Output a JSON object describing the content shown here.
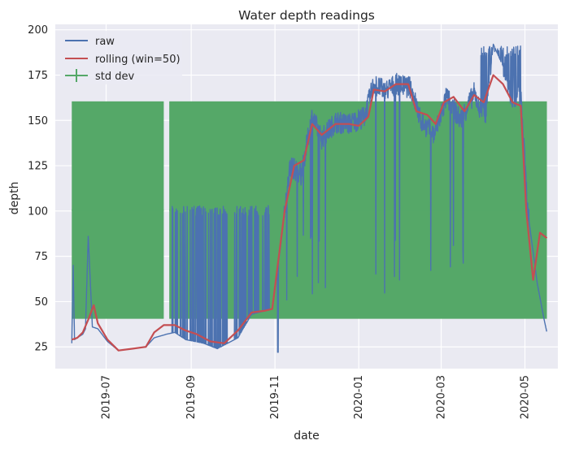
{
  "chart_data": {
    "type": "line",
    "title": "Water depth readings",
    "xlabel": "date",
    "ylabel": "depth",
    "x_range": [
      "2019-05-25",
      "2020-05-25"
    ],
    "ylim": [
      13,
      203
    ],
    "x_ticks": [
      "2019-07",
      "2019-09",
      "2019-11",
      "2020-01",
      "2020-03",
      "2020-05"
    ],
    "y_ticks": [
      25,
      50,
      75,
      100,
      125,
      150,
      175,
      200
    ],
    "grid": true,
    "legend": {
      "placement": "top-left",
      "entries": [
        "raw",
        "rolling (win=50)",
        "std dev"
      ]
    },
    "series": [
      {
        "name": "raw",
        "color": "#4c72b0",
        "style": "noisy-line",
        "points": [
          {
            "x": "2019-06-06",
            "y": 27
          },
          {
            "x": "2019-06-07",
            "y": 70
          },
          {
            "x": "2019-06-08",
            "y": 29
          },
          {
            "x": "2019-06-14",
            "y": 32
          },
          {
            "x": "2019-06-16",
            "y": 35
          },
          {
            "x": "2019-06-18",
            "y": 86
          },
          {
            "x": "2019-06-21",
            "y": 36
          },
          {
            "x": "2019-06-25",
            "y": 35
          },
          {
            "x": "2019-07-02",
            "y": 28
          },
          {
            "x": "2019-07-10",
            "y": 23
          },
          {
            "x": "2019-07-20",
            "y": 24
          },
          {
            "x": "2019-07-30",
            "y": 25
          },
          {
            "x": "2019-08-05",
            "y": 30
          },
          {
            "x": "2019-08-14",
            "y": 32
          },
          {
            "x": "2019-08-20",
            "y": 33
          },
          {
            "x": "2019-08-28",
            "y": 29
          },
          {
            "x": "2019-09-10",
            "y": 27
          },
          {
            "x": "2019-09-20",
            "y": 24
          },
          {
            "x": "2019-10-05",
            "y": 30
          },
          {
            "x": "2019-10-15",
            "y": 43
          },
          {
            "x": "2019-10-30",
            "y": 46
          },
          {
            "x": "2019-11-05",
            "y": 80
          },
          {
            "x": "2019-11-12",
            "y": 125
          },
          {
            "x": "2019-11-20",
            "y": 120
          },
          {
            "x": "2019-11-28",
            "y": 152
          },
          {
            "x": "2019-12-05",
            "y": 140
          },
          {
            "x": "2019-12-15",
            "y": 149
          },
          {
            "x": "2019-12-25",
            "y": 148
          },
          {
            "x": "2020-01-05",
            "y": 152
          },
          {
            "x": "2020-01-12",
            "y": 170
          },
          {
            "x": "2020-01-20",
            "y": 166
          },
          {
            "x": "2020-01-28",
            "y": 170
          },
          {
            "x": "2020-02-08",
            "y": 168
          },
          {
            "x": "2020-02-15",
            "y": 150
          },
          {
            "x": "2020-02-25",
            "y": 142
          },
          {
            "x": "2020-03-05",
            "y": 163
          },
          {
            "x": "2020-03-15",
            "y": 150
          },
          {
            "x": "2020-03-25",
            "y": 165
          },
          {
            "x": "2020-04-02",
            "y": 150
          },
          {
            "x": "2020-04-08",
            "y": 192
          },
          {
            "x": "2020-04-15",
            "y": 180
          },
          {
            "x": "2020-04-22",
            "y": 160
          },
          {
            "x": "2020-04-28",
            "y": 165
          },
          {
            "x": "2020-05-03",
            "y": 100
          },
          {
            "x": "2020-05-10",
            "y": 60
          },
          {
            "x": "2020-05-15",
            "y": 40
          },
          {
            "x": "2020-05-17",
            "y": 33
          }
        ]
      },
      {
        "name": "rolling (win=50)",
        "color": "#c44e52",
        "style": "line",
        "points": [
          {
            "x": "2019-06-06",
            "y": 29
          },
          {
            "x": "2019-06-10",
            "y": 30
          },
          {
            "x": "2019-06-14",
            "y": 33
          },
          {
            "x": "2019-06-18",
            "y": 40
          },
          {
            "x": "2019-06-22",
            "y": 48
          },
          {
            "x": "2019-06-25",
            "y": 38
          },
          {
            "x": "2019-07-02",
            "y": 29
          },
          {
            "x": "2019-07-10",
            "y": 23
          },
          {
            "x": "2019-07-20",
            "y": 24
          },
          {
            "x": "2019-07-30",
            "y": 25
          },
          {
            "x": "2019-08-05",
            "y": 33
          },
          {
            "x": "2019-08-12",
            "y": 37
          },
          {
            "x": "2019-08-20",
            "y": 37
          },
          {
            "x": "2019-08-28",
            "y": 34
          },
          {
            "x": "2019-09-05",
            "y": 32
          },
          {
            "x": "2019-09-15",
            "y": 28
          },
          {
            "x": "2019-09-25",
            "y": 27
          },
          {
            "x": "2019-10-05",
            "y": 34
          },
          {
            "x": "2019-10-15",
            "y": 44
          },
          {
            "x": "2019-10-25",
            "y": 45
          },
          {
            "x": "2019-10-30",
            "y": 46
          },
          {
            "x": "2019-11-03",
            "y": 70
          },
          {
            "x": "2019-11-08",
            "y": 100
          },
          {
            "x": "2019-11-15",
            "y": 125
          },
          {
            "x": "2019-11-22",
            "y": 128
          },
          {
            "x": "2019-11-28",
            "y": 148
          },
          {
            "x": "2019-12-05",
            "y": 142
          },
          {
            "x": "2019-12-15",
            "y": 148
          },
          {
            "x": "2019-12-25",
            "y": 148
          },
          {
            "x": "2020-01-01",
            "y": 147
          },
          {
            "x": "2020-01-08",
            "y": 152
          },
          {
            "x": "2020-01-12",
            "y": 167
          },
          {
            "x": "2020-01-20",
            "y": 166
          },
          {
            "x": "2020-01-28",
            "y": 170
          },
          {
            "x": "2020-02-06",
            "y": 170
          },
          {
            "x": "2020-02-12",
            "y": 155
          },
          {
            "x": "2020-02-20",
            "y": 153
          },
          {
            "x": "2020-02-26",
            "y": 148
          },
          {
            "x": "2020-03-03",
            "y": 160
          },
          {
            "x": "2020-03-10",
            "y": 163
          },
          {
            "x": "2020-03-18",
            "y": 155
          },
          {
            "x": "2020-03-25",
            "y": 164
          },
          {
            "x": "2020-04-01",
            "y": 160
          },
          {
            "x": "2020-04-08",
            "y": 175
          },
          {
            "x": "2020-04-15",
            "y": 170
          },
          {
            "x": "2020-04-22",
            "y": 160
          },
          {
            "x": "2020-04-28",
            "y": 158
          },
          {
            "x": "2020-05-02",
            "y": 100
          },
          {
            "x": "2020-05-07",
            "y": 62
          },
          {
            "x": "2020-05-12",
            "y": 88
          },
          {
            "x": "2020-05-17",
            "y": 85
          }
        ]
      },
      {
        "name": "std dev",
        "color": "#55a868",
        "style": "errorbar",
        "center": 100.5,
        "half_width": 60,
        "segments": [
          {
            "x_start": "2019-06-06",
            "x_end": "2019-08-12"
          },
          {
            "x_start": "2019-08-16",
            "x_end": "2020-05-17"
          }
        ]
      }
    ]
  }
}
